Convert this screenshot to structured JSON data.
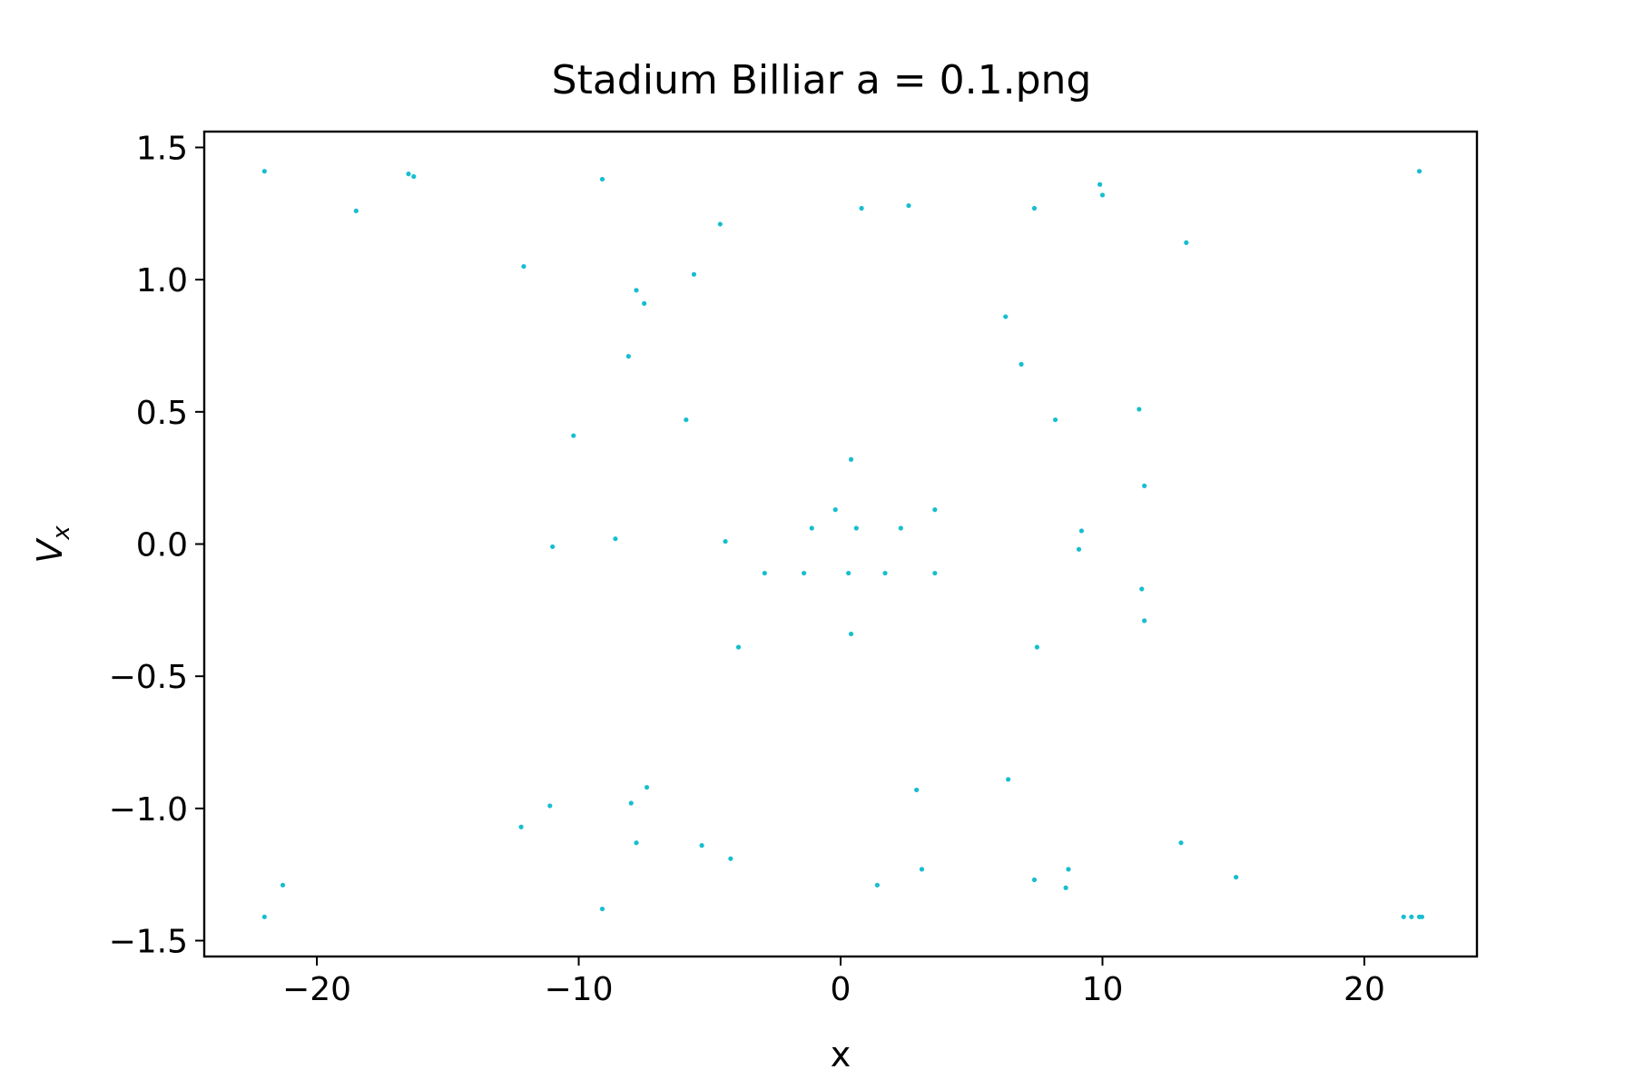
{
  "chart_data": {
    "type": "scatter",
    "title": "Stadium Billiar a = 0.1.png",
    "xlabel": "x",
    "ylabel": "V",
    "ylabel_subscript": "x",
    "xlim": [
      -24.3,
      24.3
    ],
    "ylim": [
      -1.56,
      1.56
    ],
    "xticks": [
      -20,
      -10,
      0,
      10,
      20
    ],
    "xtick_labels": [
      "−20",
      "−10",
      "0",
      "10",
      "20"
    ],
    "yticks": [
      -1.5,
      -1.0,
      -0.5,
      0.0,
      0.5,
      1.0,
      1.5
    ],
    "ytick_labels": [
      "−1.5",
      "−1.0",
      "−0.5",
      "0.0",
      "0.5",
      "1.0",
      "1.5"
    ],
    "grid": false,
    "marker_color": "#17becf",
    "series": [
      {
        "points": [
          [
            -22.0,
            1.41
          ],
          [
            -18.5,
            1.26
          ],
          [
            -16.5,
            1.4
          ],
          [
            -16.3,
            1.39
          ],
          [
            -9.1,
            1.38
          ],
          [
            -12.1,
            1.05
          ],
          [
            -7.8,
            0.96
          ],
          [
            -7.5,
            0.91
          ],
          [
            -8.1,
            0.71
          ],
          [
            -5.6,
            1.02
          ],
          [
            -4.6,
            1.21
          ],
          [
            -5.9,
            0.47
          ],
          [
            -10.2,
            0.41
          ],
          [
            0.8,
            1.27
          ],
          [
            2.6,
            1.28
          ],
          [
            7.4,
            1.27
          ],
          [
            9.9,
            1.36
          ],
          [
            10.0,
            1.32
          ],
          [
            13.2,
            1.14
          ],
          [
            22.1,
            1.41
          ],
          [
            6.3,
            0.86
          ],
          [
            6.9,
            0.68
          ],
          [
            8.2,
            0.47
          ],
          [
            11.4,
            0.51
          ],
          [
            11.6,
            0.22
          ],
          [
            0.4,
            0.32
          ],
          [
            -0.2,
            0.13
          ],
          [
            3.6,
            0.13
          ],
          [
            -1.1,
            0.06
          ],
          [
            0.6,
            0.06
          ],
          [
            2.3,
            0.06
          ],
          [
            9.2,
            0.05
          ],
          [
            9.1,
            -0.02
          ],
          [
            -11.0,
            -0.01
          ],
          [
            -8.6,
            0.02
          ],
          [
            -4.4,
            0.01
          ],
          [
            -2.9,
            -0.11
          ],
          [
            -1.4,
            -0.11
          ],
          [
            0.3,
            -0.11
          ],
          [
            1.7,
            -0.11
          ],
          [
            3.6,
            -0.11
          ],
          [
            11.5,
            -0.17
          ],
          [
            11.6,
            -0.29
          ],
          [
            0.4,
            -0.34
          ],
          [
            -3.9,
            -0.39
          ],
          [
            7.5,
            -0.39
          ],
          [
            6.4,
            -0.89
          ],
          [
            2.9,
            -0.93
          ],
          [
            -7.4,
            -0.92
          ],
          [
            -8.0,
            -0.98
          ],
          [
            -11.1,
            -0.99
          ],
          [
            -12.2,
            -1.07
          ],
          [
            -7.8,
            -1.13
          ],
          [
            -5.3,
            -1.14
          ],
          [
            -4.2,
            -1.19
          ],
          [
            13.0,
            -1.13
          ],
          [
            15.1,
            -1.26
          ],
          [
            8.7,
            -1.23
          ],
          [
            8.6,
            -1.3
          ],
          [
            7.4,
            -1.27
          ],
          [
            3.1,
            -1.23
          ],
          [
            1.4,
            -1.29
          ],
          [
            -21.3,
            -1.29
          ],
          [
            -22.0,
            -1.41
          ],
          [
            -9.1,
            -1.38
          ],
          [
            21.5,
            -1.41
          ],
          [
            21.8,
            -1.41
          ],
          [
            22.1,
            -1.41
          ],
          [
            22.2,
            -1.41
          ]
        ]
      }
    ]
  }
}
